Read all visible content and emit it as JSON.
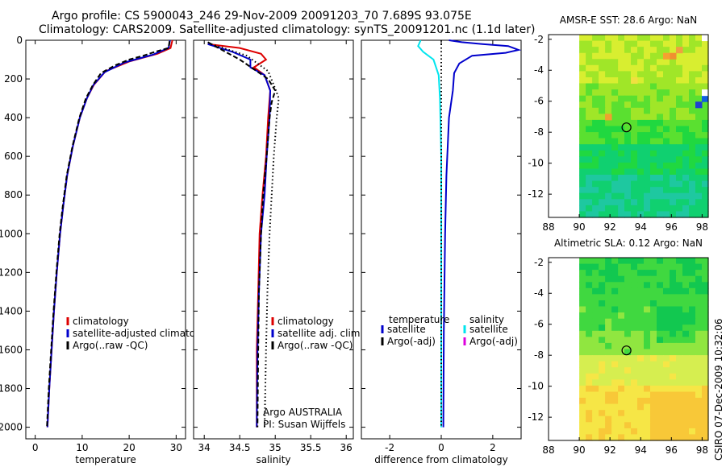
{
  "header": {
    "line1": "Argo profile: CS 5900043_246 29-Nov-2009 20091203_70 7.689S 93.075E",
    "line2": "Climatology: CARS2009. Satellite-adjusted climatology: synTS_20091201.nc (1.1d later)"
  },
  "footer": {
    "credit": "CSIRO 07-Dec-2009 10:32:06"
  },
  "chart_data": [
    {
      "id": "temperature",
      "type": "line",
      "xlabel": "temperature",
      "xlim": [
        -2,
        32
      ],
      "xticks": [
        "0",
        "10",
        "20",
        "30"
      ],
      "xtick_values": [
        0,
        10,
        20,
        30
      ],
      "ylim": [
        0,
        2060
      ],
      "yticks": [
        "0",
        "200",
        "400",
        "600",
        "800",
        "1000",
        "1200",
        "1400",
        "1600",
        "1800",
        "2000"
      ],
      "ytick_values": [
        0,
        200,
        400,
        600,
        800,
        1000,
        1200,
        1400,
        1600,
        1800,
        2000
      ],
      "legend": [
        "climatology",
        "satellite-adjusted climatology",
        "Argo(..raw -QC)"
      ],
      "series": [
        {
          "name": "climatology",
          "color": "#dd0000",
          "style": "solid",
          "points": [
            [
              29.2,
              0
            ],
            [
              28.8,
              40
            ],
            [
              26,
              70
            ],
            [
              20,
              110
            ],
            [
              15,
              160
            ],
            [
              12.5,
              230
            ],
            [
              11,
              300
            ],
            [
              9.5,
              400
            ],
            [
              8,
              550
            ],
            [
              6.8,
              700
            ],
            [
              6,
              850
            ],
            [
              5.3,
              1000
            ],
            [
              4.6,
              1200
            ],
            [
              4,
              1400
            ],
            [
              3.5,
              1600
            ],
            [
              3,
              1800
            ],
            [
              2.6,
              2000
            ]
          ]
        },
        {
          "name": "satellite-adjusted climatology",
          "color": "#0000cc",
          "style": "solid",
          "points": [
            [
              28.7,
              0
            ],
            [
              28.4,
              40
            ],
            [
              25,
              75
            ],
            [
              19,
              115
            ],
            [
              14.8,
              165
            ],
            [
              12.4,
              230
            ],
            [
              11,
              300
            ],
            [
              9.5,
              400
            ],
            [
              8,
              550
            ],
            [
              6.8,
              700
            ],
            [
              6,
              850
            ],
            [
              5.3,
              1000
            ],
            [
              4.6,
              1200
            ],
            [
              4,
              1400
            ],
            [
              3.5,
              1600
            ],
            [
              3,
              1800
            ],
            [
              2.6,
              2000
            ]
          ]
        },
        {
          "name": "Argo(..raw -QC)",
          "color": "#000000",
          "style": "dash",
          "points": [
            [
              28.6,
              5
            ],
            [
              28.4,
              40
            ],
            [
              25.5,
              60
            ],
            [
              23,
              80
            ],
            [
              20,
              100
            ],
            [
              17,
              130
            ],
            [
              14,
              170
            ],
            [
              12.3,
              230
            ],
            [
              10.8,
              300
            ],
            [
              9.4,
              400
            ],
            [
              7.9,
              550
            ],
            [
              6.7,
              700
            ],
            [
              5.9,
              850
            ],
            [
              5.2,
              1000
            ],
            [
              4.5,
              1200
            ],
            [
              3.9,
              1400
            ],
            [
              3.4,
              1600
            ],
            [
              2.9,
              1800
            ],
            [
              2.5,
              2000
            ]
          ]
        }
      ]
    },
    {
      "id": "salinity",
      "type": "line",
      "xlabel": "salinity",
      "xlim": [
        33.85,
        36.1
      ],
      "xticks": [
        "34",
        "34.5",
        "35",
        "35.5",
        "36"
      ],
      "xtick_values": [
        34,
        34.5,
        35,
        35.5,
        36
      ],
      "ylim": [
        0,
        2060
      ],
      "legend": [
        "climatology",
        "satellite adj. clim.",
        "Argo(..raw -QC)"
      ],
      "annotation": [
        "Argo AUSTRALIA",
        "PI: Susan Wijffels"
      ],
      "series": [
        {
          "name": "climatology",
          "color": "#dd0000",
          "style": "solid",
          "points": [
            [
              34.05,
              20
            ],
            [
              34.5,
              40
            ],
            [
              34.8,
              70
            ],
            [
              34.87,
              100
            ],
            [
              34.7,
              140
            ],
            [
              34.85,
              180
            ],
            [
              34.93,
              260
            ],
            [
              34.9,
              400
            ],
            [
              34.87,
              600
            ],
            [
              34.82,
              800
            ],
            [
              34.78,
              1000
            ],
            [
              34.76,
              1300
            ],
            [
              34.74,
              1600
            ],
            [
              34.74,
              2000
            ]
          ]
        },
        {
          "name": "satellite adj. clim.",
          "color": "#0000cc",
          "style": "solid",
          "points": [
            [
              34.05,
              20
            ],
            [
              34.4,
              60
            ],
            [
              34.65,
              100
            ],
            [
              34.65,
              140
            ],
            [
              34.85,
              180
            ],
            [
              34.93,
              260
            ],
            [
              34.92,
              400
            ],
            [
              34.88,
              600
            ],
            [
              34.85,
              800
            ],
            [
              34.8,
              1000
            ],
            [
              34.77,
              1300
            ],
            [
              34.75,
              1600
            ],
            [
              34.74,
              2000
            ]
          ]
        },
        {
          "name": "Argo(..raw -QC)",
          "color": "#000000",
          "style": "dash",
          "points": [
            [
              34.05,
              10
            ],
            [
              34.2,
              40
            ],
            [
              34.3,
              60
            ],
            [
              34.5,
              100
            ],
            [
              34.7,
              150
            ],
            [
              34.9,
              200
            ],
            [
              35.0,
              260
            ],
            [
              34.95,
              320
            ],
            [
              34.92,
              400
            ],
            [
              34.88,
              600
            ],
            [
              34.83,
              800
            ],
            [
              34.8,
              1000
            ],
            [
              34.77,
              1300
            ],
            [
              34.76,
              1600
            ],
            [
              34.75,
              2000
            ]
          ]
        },
        {
          "name": "reference",
          "color": "#000000",
          "style": "dot",
          "points": [
            [
              34.1,
              20
            ],
            [
              34.6,
              80
            ],
            [
              34.9,
              160
            ],
            [
              35.0,
              250
            ],
            [
              35.05,
              300
            ],
            [
              35.02,
              400
            ],
            [
              34.98,
              600
            ],
            [
              34.95,
              800
            ],
            [
              34.92,
              1000
            ],
            [
              34.89,
              1300
            ],
            [
              34.87,
              1600
            ],
            [
              34.85,
              2000
            ]
          ]
        }
      ]
    },
    {
      "id": "difference",
      "type": "line",
      "xlabel": "difference from climatology",
      "xlim": [
        -3.1,
        3.1
      ],
      "xticks": [
        "-2",
        "0",
        "2"
      ],
      "xtick_values": [
        -2,
        0,
        2
      ],
      "ylim": [
        0,
        2060
      ],
      "legend_headers": [
        "temperature",
        "salinity"
      ],
      "legend": [
        "satellite",
        "Argo(-adj)",
        "satellite",
        "Argo(-adj)"
      ],
      "series": [
        {
          "name": "temperature satellite",
          "color": "#0000cc",
          "style": "solid",
          "points": [
            [
              0.3,
              0
            ],
            [
              0.8,
              10
            ],
            [
              1.6,
              20
            ],
            [
              2.6,
              30
            ],
            [
              3.0,
              50
            ],
            [
              2.5,
              65
            ],
            [
              1.2,
              80
            ],
            [
              0.7,
              120
            ],
            [
              0.5,
              170
            ],
            [
              0.45,
              260
            ],
            [
              0.3,
              400
            ],
            [
              0.2,
              700
            ],
            [
              0.15,
              1000
            ],
            [
              0.1,
              1500
            ],
            [
              0.08,
              2000
            ]
          ]
        },
        {
          "name": "salinity satellite",
          "color": "#00e5ee",
          "style": "solid",
          "points": [
            [
              -0.8,
              0
            ],
            [
              -0.9,
              30
            ],
            [
              -0.7,
              60
            ],
            [
              -0.3,
              100
            ],
            [
              -0.1,
              180
            ],
            [
              -0.05,
              300
            ],
            [
              0,
              600
            ],
            [
              0,
              1000
            ],
            [
              0,
              1500
            ],
            [
              0,
              2000
            ]
          ]
        },
        {
          "name": "zero",
          "color": "#000000",
          "style": "dot",
          "points": [
            [
              0,
              0
            ],
            [
              0,
              2000
            ]
          ]
        }
      ]
    },
    {
      "id": "sst_map",
      "type": "heatmap",
      "title": "AMSR-E SST: 28.6 Argo: NaN",
      "xlim": [
        88,
        98.4
      ],
      "ylim": [
        -13.5,
        -1.7
      ],
      "xticks": [
        "88",
        "90",
        "92",
        "94",
        "96",
        "98"
      ],
      "xtick_values": [
        88,
        90,
        92,
        94,
        96,
        98
      ],
      "yticks": [
        "-2",
        "-4",
        "-6",
        "-8",
        "-10",
        "-12"
      ],
      "ytick_values": [
        -2,
        -4,
        -6,
        -8,
        -10,
        -12
      ],
      "data_lon": [
        90,
        98.4
      ],
      "data_lat": [
        -13.5,
        -1.7
      ],
      "marker": [
        93.075,
        -7.689
      ],
      "colors": [
        "#1ec8a0",
        "#10d070",
        "#20d840",
        "#5ae030",
        "#a0e628",
        "#d8ee30",
        "#f0e040"
      ]
    },
    {
      "id": "sla_map",
      "type": "heatmap",
      "title": "Altimetric SLA: 0.12 Argo: NaN",
      "xlim": [
        88,
        98.4
      ],
      "ylim": [
        -13.5,
        -1.7
      ],
      "xticks": [
        "88",
        "90",
        "92",
        "94",
        "96",
        "98"
      ],
      "xtick_values": [
        88,
        90,
        92,
        94,
        96,
        98
      ],
      "yticks": [
        "-2",
        "-4",
        "-6",
        "-8",
        "-10",
        "-12"
      ],
      "ytick_values": [
        -2,
        -4,
        -6,
        -8,
        -10,
        -12
      ],
      "data_lon": [
        90,
        98.4
      ],
      "data_lat": [
        -13.5,
        -1.7
      ],
      "marker": [
        93.075,
        -7.689
      ],
      "colors": [
        "#12c850",
        "#40d840",
        "#90e640",
        "#d6ee50",
        "#f6e646",
        "#f8c838"
      ]
    }
  ]
}
